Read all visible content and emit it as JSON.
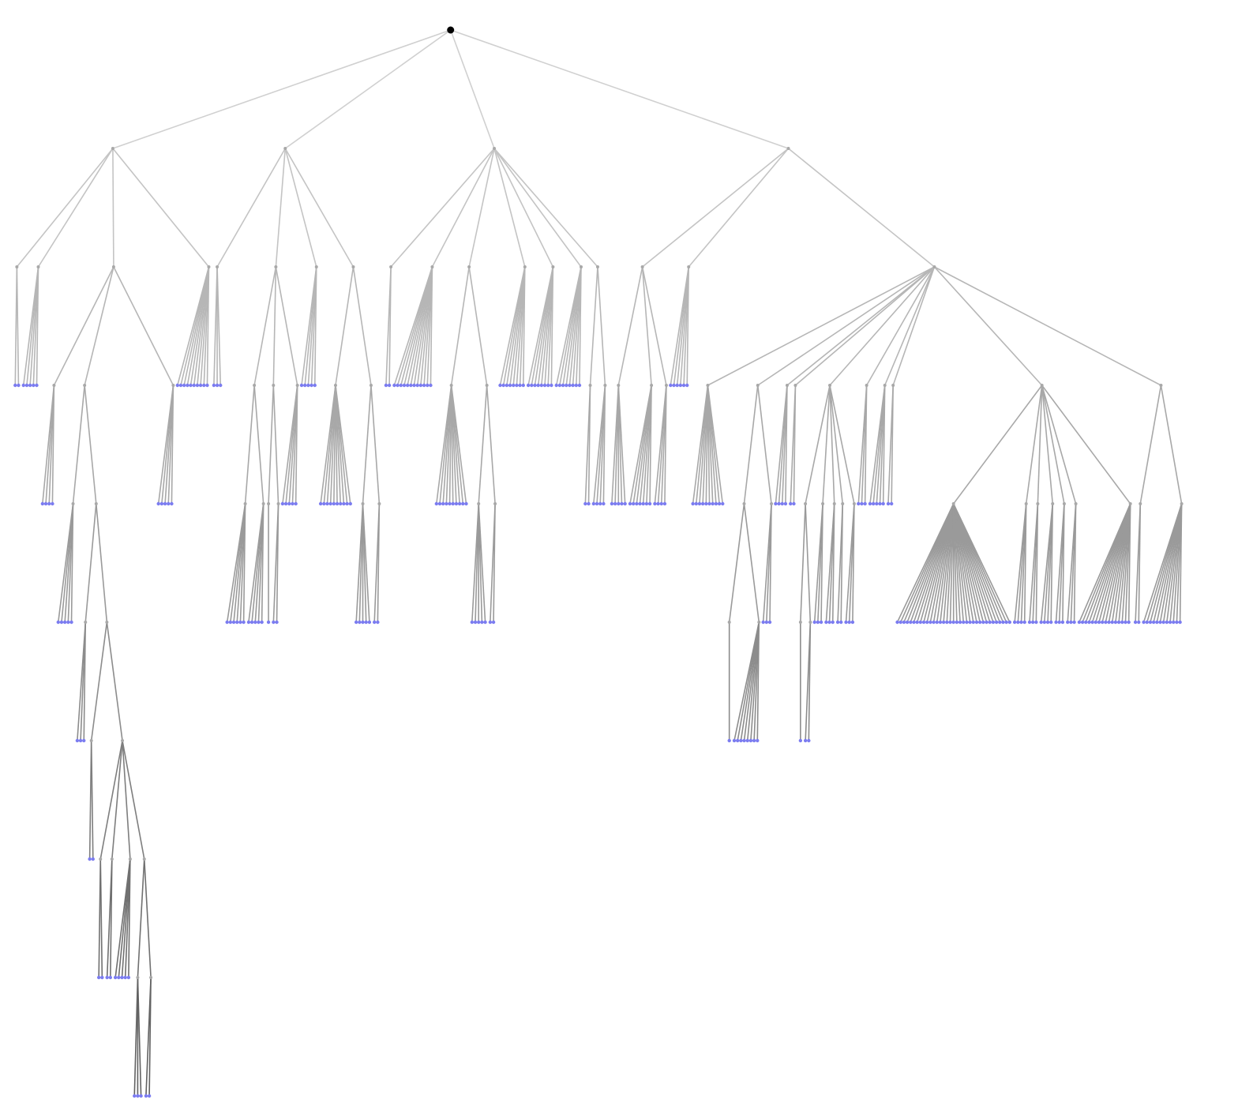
{
  "diagram": {
    "type": "tree",
    "root_color": "#000000",
    "leaf_color": "#7b7cf0",
    "internal_node_color": "#a8a8a8",
    "edge_colors_by_depth": [
      "#d0d0d0",
      "#c4c4c4",
      "#b6b6b6",
      "#a8a8a8",
      "#9a9a9a",
      "#8c8c8c",
      "#7e7e7e",
      "#707070",
      "#626262"
    ]
  },
  "tree": {
    "children": [
      {
        "children": [
          {
            "leaves": 2
          },
          {
            "leaves": 5,
            "cluster": true
          },
          {
            "children": [
              {
                "leaves": 4,
                "cluster": true
              },
              {
                "children": [
                  {
                    "leaves": 5,
                    "cluster": true
                  },
                  {
                    "children": [
                      {
                        "leaves": 3,
                        "cluster": true
                      },
                      {
                        "children": [
                          {
                            "leaves": 2
                          },
                          {
                            "children": [
                              {
                                "leaves": 2
                              },
                              {
                                "leaves": 2,
                                "cluster": true
                              },
                              {
                                "leaves": 5,
                                "cluster": true
                              },
                              {
                                "children": [
                                  {
                                    "leaves": 3
                                  },
                                  {
                                    "leaves": 2,
                                    "cluster": true
                                  }
                                ]
                              }
                            ]
                          }
                        ]
                      }
                    ]
                  }
                ]
              },
              {
                "leaves": 5,
                "cluster": true
              }
            ]
          },
          {
            "leaves": 10,
            "cluster": true
          }
        ]
      },
      {
        "children": [
          {
            "leaves": 3
          },
          {
            "children": [
              {
                "children": [
                  {
                    "leaves": 6,
                    "cluster": true
                  },
                  {
                    "leaves": 5,
                    "cluster": true
                  }
                ]
              },
              {
                "children": [
                  {
                    "leaves": 1
                  },
                  {
                    "leaves": 2,
                    "cluster": true
                  }
                ]
              },
              {
                "leaves": 5,
                "cluster": true
              }
            ]
          },
          {
            "leaves": 5,
            "cluster": true
          },
          {
            "children": [
              {
                "leaves": 10
              },
              {
                "children": [
                  {
                    "leaves": 5
                  },
                  {
                    "leaves": 2,
                    "cluster": true
                  }
                ]
              }
            ]
          }
        ]
      },
      {
        "children": [
          {
            "leaves": 2,
            "cluster": true
          },
          {
            "leaves": 12,
            "cluster": true
          },
          {
            "children": [
              {
                "leaves": 10
              },
              {
                "children": [
                  {
                    "leaves": 5
                  },
                  {
                    "leaves": 2,
                    "cluster": true
                  }
                ]
              }
            ]
          },
          {
            "leaves": 8,
            "cluster": true
          },
          {
            "leaves": 8,
            "cluster": true
          },
          {
            "leaves": 8,
            "cluster": true
          },
          {
            "children": [
              {
                "leaves": 2,
                "cluster": true
              },
              {
                "leaves": 4,
                "cluster": true
              }
            ]
          }
        ]
      },
      {
        "children": [
          {
            "children": [
              {
                "leaves": 5
              },
              {
                "leaves": 7,
                "cluster": true
              },
              {
                "leaves": 4,
                "cluster": true
              }
            ]
          },
          {
            "leaves": 6,
            "cluster": true
          },
          {
            "children": [
              {
                "leaves": 10
              },
              {
                "children": [
                  {
                    "children": [
                      {
                        "leaves": 1
                      },
                      {
                        "leaves": 8,
                        "cluster": true
                      }
                    ]
                  },
                  {
                    "leaves": 3,
                    "cluster": true
                  }
                ]
              },
              {
                "leaves": 4,
                "cluster": true
              },
              {
                "leaves": 2,
                "cluster": true
              },
              {
                "children": [
                  {
                    "children": [
                      {
                        "leaves": 1
                      },
                      {
                        "leaves": 2,
                        "cluster": true
                      }
                    ]
                  },
                  {
                    "leaves": 3,
                    "cluster": true
                  },
                  {
                    "leaves": 3,
                    "cluster": true
                  },
                  {
                    "leaves": 2,
                    "cluster": true
                  },
                  {
                    "leaves": 3,
                    "cluster": true
                  }
                ]
              },
              {
                "leaves": 3,
                "cluster": true
              },
              {
                "leaves": 5,
                "cluster": true
              },
              {
                "leaves": 2,
                "cluster": true
              },
              {
                "children": [
                  {
                    "leaves": 35
                  },
                  {
                    "leaves": 4,
                    "cluster": true
                  },
                  {
                    "leaves": 3,
                    "cluster": true
                  },
                  {
                    "leaves": 4,
                    "cluster": true
                  },
                  {
                    "leaves": 3,
                    "cluster": true
                  },
                  {
                    "leaves": 3,
                    "cluster": true
                  },
                  {
                    "leaves": 16,
                    "cluster": true
                  }
                ]
              },
              {
                "children": [
                  {
                    "leaves": 2,
                    "cluster": true
                  },
                  {
                    "leaves": 12,
                    "cluster": true
                  }
                ]
              }
            ]
          }
        ]
      }
    ]
  }
}
